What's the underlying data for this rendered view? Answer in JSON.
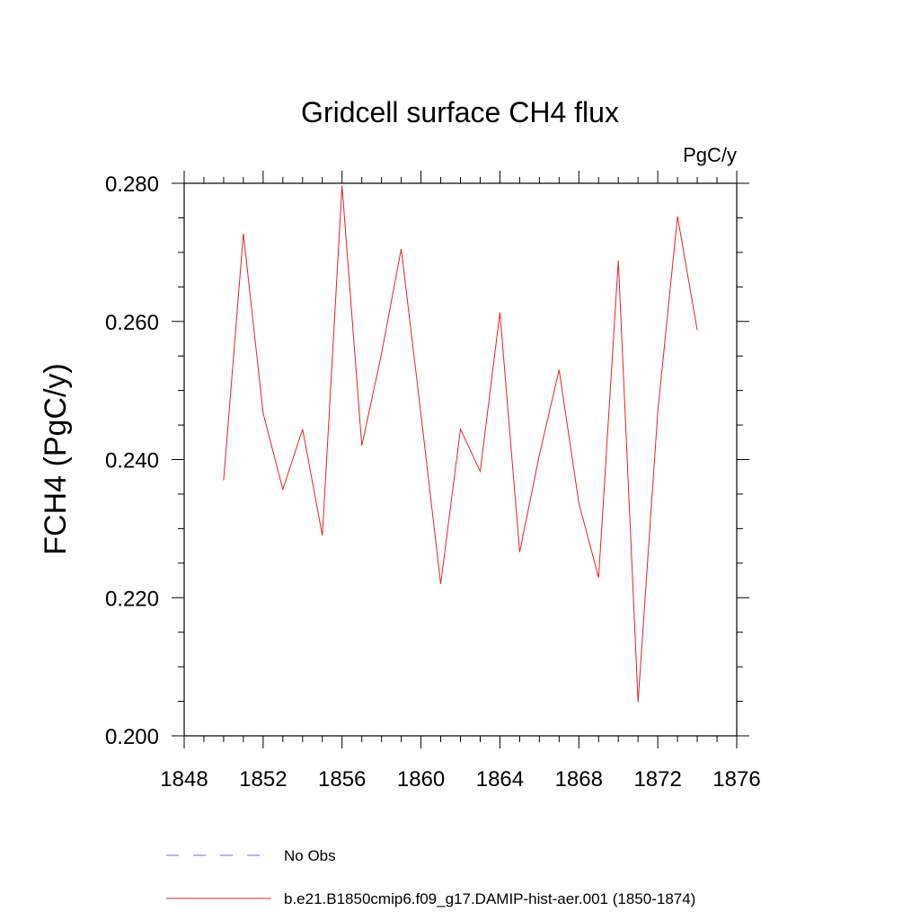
{
  "chart_data": {
    "type": "line",
    "title": "Gridcell surface CH4 flux",
    "units": "PgC/y",
    "xlabel": "",
    "ylabel": "FCH4  (PgC/y)",
    "xlim": [
      1848,
      1876
    ],
    "ylim": [
      0.2,
      0.28
    ],
    "x_ticks": [
      "1848",
      "1852",
      "1856",
      "1860",
      "1864",
      "1868",
      "1872",
      "1876"
    ],
    "y_ticks": [
      "0.200",
      "0.220",
      "0.240",
      "0.260",
      "0.280"
    ],
    "grid": false,
    "legend_position": "bottom",
    "series": [
      {
        "name": "b.e21.B1850cmip6.f09_g17.DAMIP-hist-aer.001 (1850-1874)",
        "color": "#e8202a",
        "x": [
          1850,
          1851,
          1852,
          1853,
          1854,
          1855,
          1856,
          1857,
          1858,
          1859,
          1860,
          1861,
          1862,
          1863,
          1864,
          1865,
          1866,
          1867,
          1868,
          1869,
          1870,
          1871,
          1872,
          1873,
          1874
        ],
        "values": [
          0.237,
          0.2727,
          0.2467,
          0.2357,
          0.2444,
          0.229,
          0.2797,
          0.242,
          0.2553,
          0.2705,
          0.2465,
          0.222,
          0.2444,
          0.2383,
          0.2613,
          0.2266,
          0.2407,
          0.253,
          0.2337,
          0.2229,
          0.2688,
          0.2049,
          0.2469,
          0.2752,
          0.2587
        ]
      }
    ],
    "legend": [
      {
        "label": "No Obs",
        "style": "dashed",
        "color": "#6d6dd6"
      },
      {
        "label": "b.e21.B1850cmip6.f09_g17.DAMIP-hist-aer.001 (1850-1874)",
        "style": "solid",
        "color": "#e8202a"
      }
    ]
  }
}
